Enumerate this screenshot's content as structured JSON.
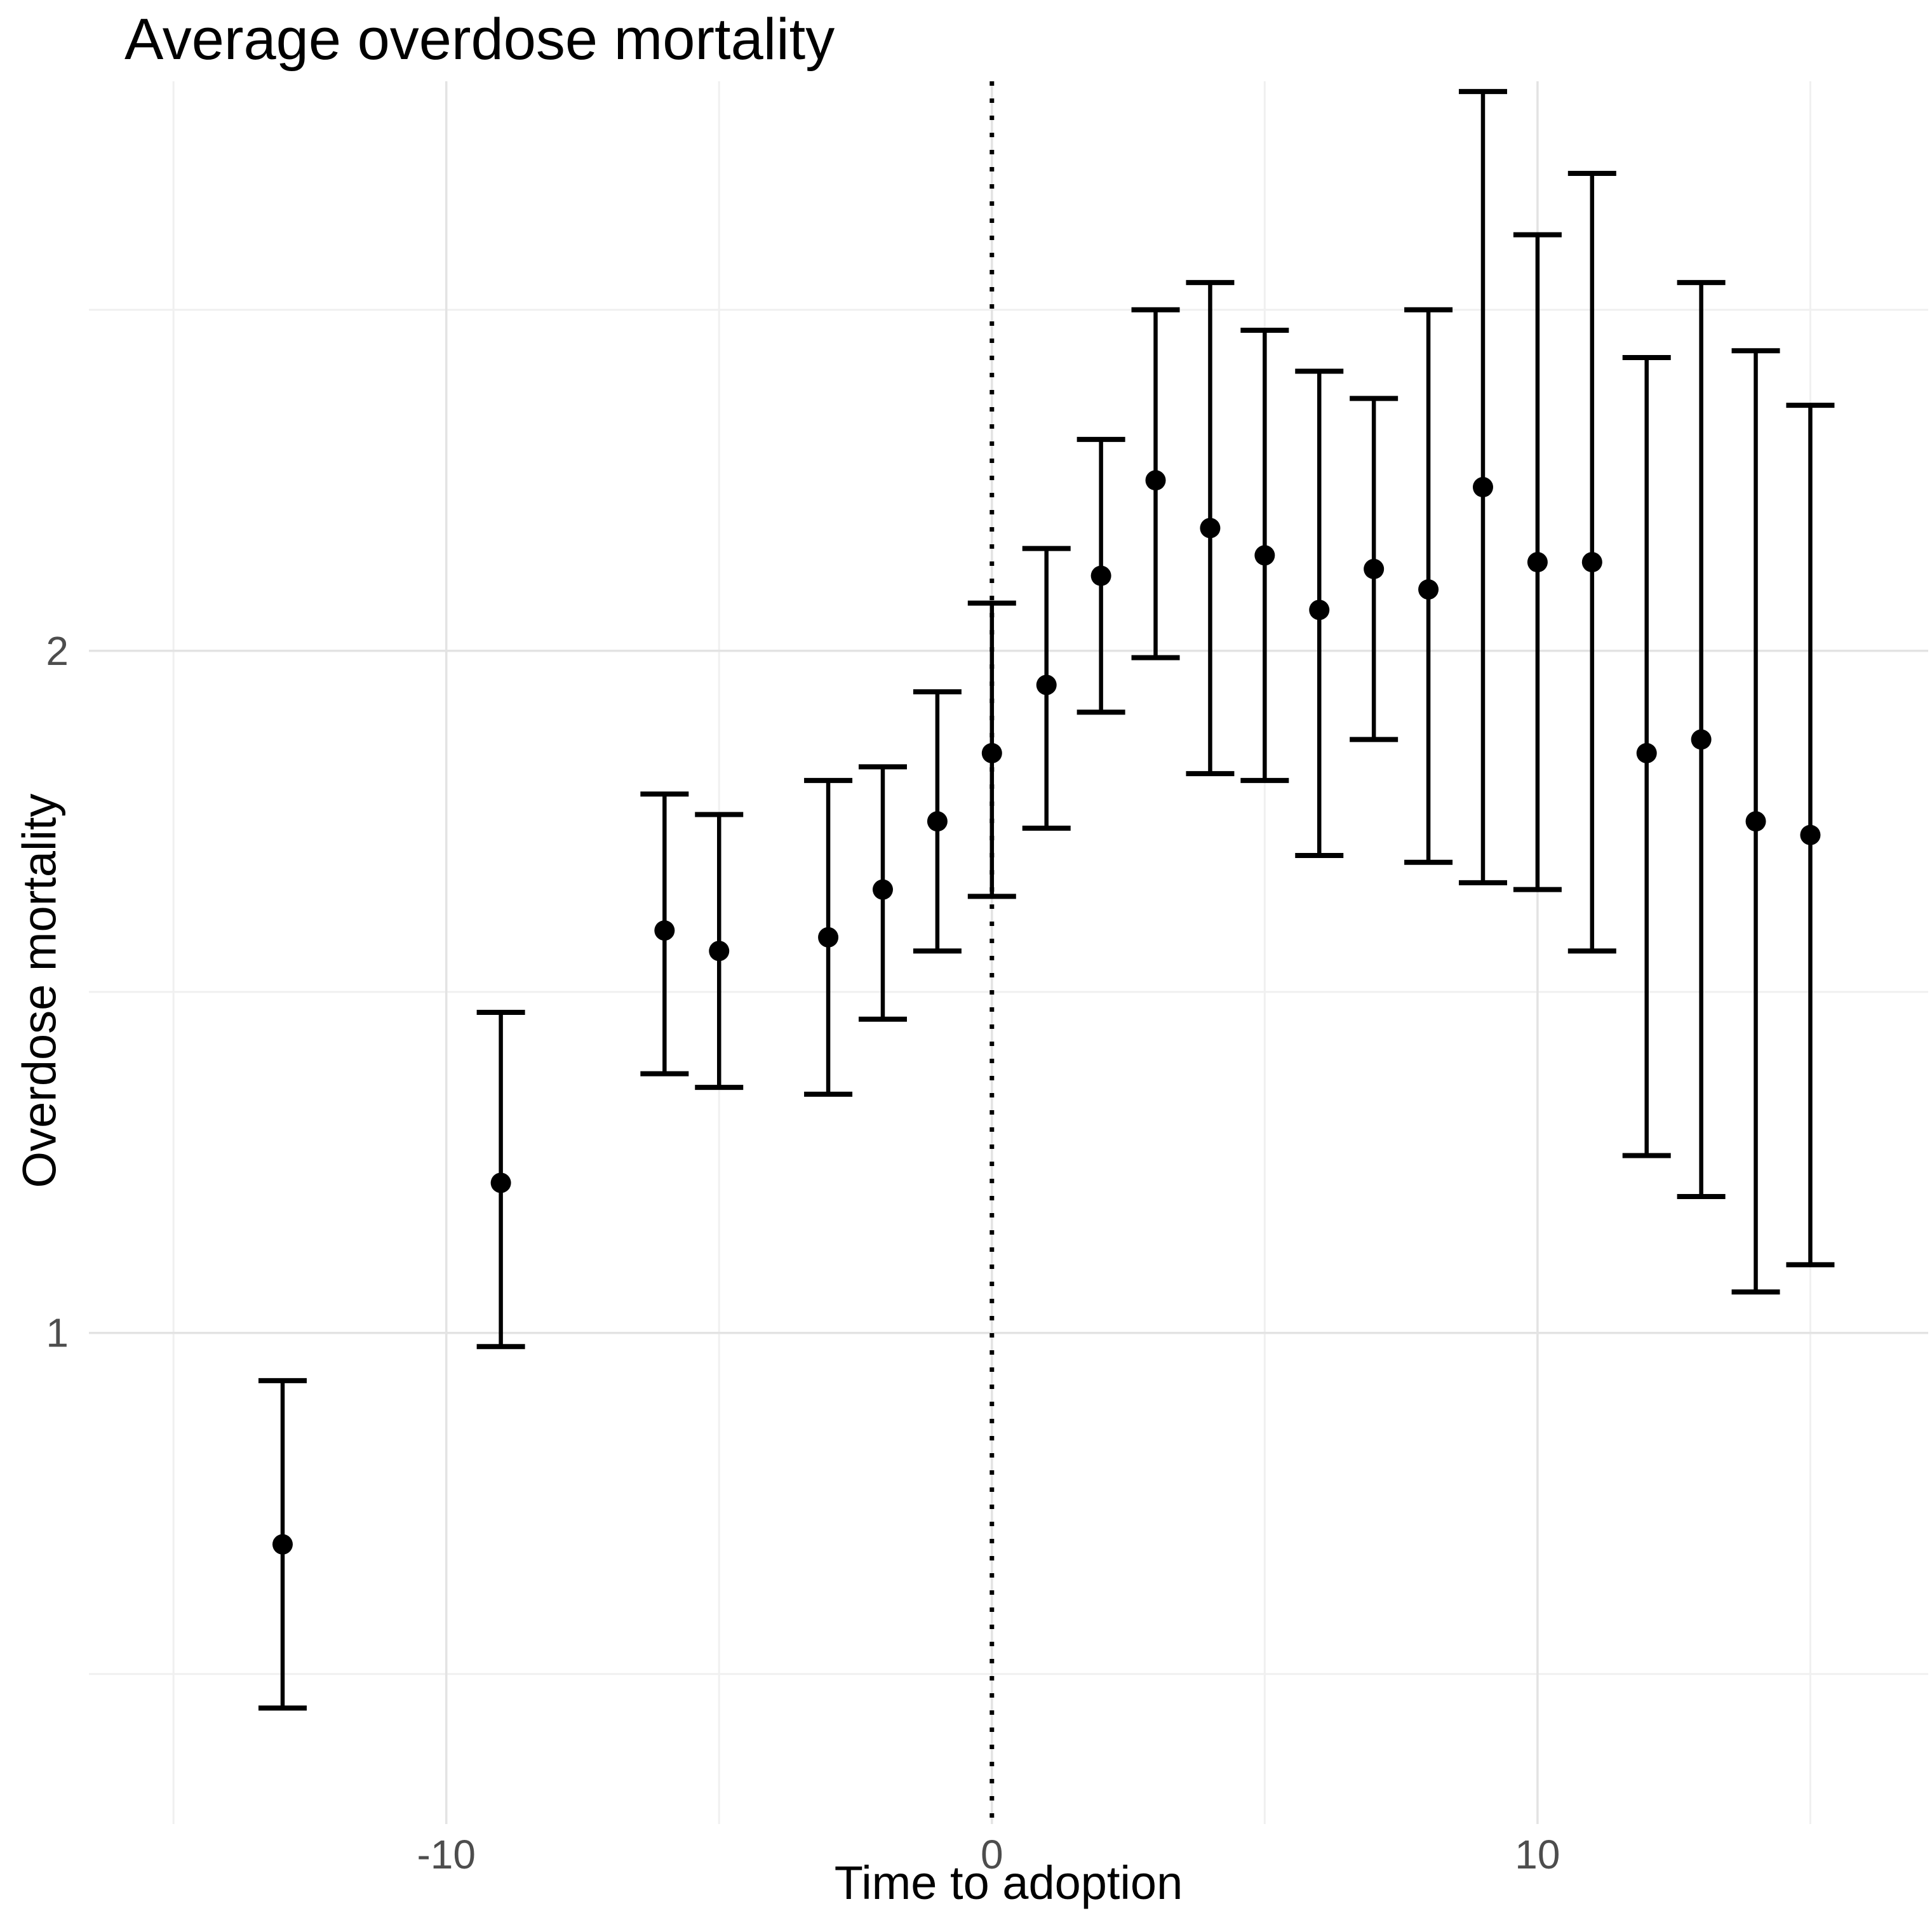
{
  "title": "Average overdose mortality",
  "colors": {
    "background": "#ffffff",
    "point_and_bar": "#000000",
    "gridline_major": "#e3e3e3",
    "gridline_minor": "#f0f0f0",
    "axis_tick_label": "#4d4d4d",
    "axis_title": "#000000",
    "reference_line": "#000000"
  },
  "chart_data": {
    "type": "scatter",
    "subtype": "pointrange-errorbar",
    "title": "Average overdose mortality",
    "xlabel": "Time to adoption",
    "ylabel": "Overdose mortality",
    "xlim": [
      -16.55,
      17.16
    ],
    "ylim": [
      0.28,
      2.835
    ],
    "grid": true,
    "legend_position": "none",
    "reference_line_x": 0,
    "x_major_ticks": [
      {
        "value": -10,
        "label": "-10"
      },
      {
        "value": 0,
        "label": "0"
      },
      {
        "value": 10,
        "label": "10"
      }
    ],
    "x_minor_gridlines": [
      -15,
      -5,
      5,
      15
    ],
    "y_major_ticks": [
      {
        "value": 1,
        "label": "1"
      },
      {
        "value": 2,
        "label": "2"
      }
    ],
    "y_minor_gridlines": [
      0.5,
      1.5,
      2.5
    ],
    "points": [
      {
        "t": -13,
        "estimate": 0.69,
        "ci_low": 0.45,
        "ci_high": 0.93
      },
      {
        "t": -9,
        "estimate": 1.22,
        "ci_low": 0.98,
        "ci_high": 1.47
      },
      {
        "t": -6,
        "estimate": 1.59,
        "ci_low": 1.38,
        "ci_high": 1.79
      },
      {
        "t": -5,
        "estimate": 1.56,
        "ci_low": 1.36,
        "ci_high": 1.76
      },
      {
        "t": -3,
        "estimate": 1.58,
        "ci_low": 1.35,
        "ci_high": 1.81
      },
      {
        "t": -2,
        "estimate": 1.65,
        "ci_low": 1.46,
        "ci_high": 1.83
      },
      {
        "t": -1,
        "estimate": 1.75,
        "ci_low": 1.56,
        "ci_high": 1.94
      },
      {
        "t": 0,
        "estimate": 1.85,
        "ci_low": 1.64,
        "ci_high": 2.07
      },
      {
        "t": 1,
        "estimate": 1.95,
        "ci_low": 1.74,
        "ci_high": 2.15
      },
      {
        "t": 2,
        "estimate": 2.11,
        "ci_low": 1.91,
        "ci_high": 2.31
      },
      {
        "t": 3,
        "estimate": 2.25,
        "ci_low": 1.99,
        "ci_high": 2.5
      },
      {
        "t": 4,
        "estimate": 2.18,
        "ci_low": 1.82,
        "ci_high": 2.54
      },
      {
        "t": 5,
        "estimate": 2.14,
        "ci_low": 1.81,
        "ci_high": 2.47
      },
      {
        "t": 6,
        "estimate": 2.06,
        "ci_low": 1.7,
        "ci_high": 2.41
      },
      {
        "t": 7,
        "estimate": 2.12,
        "ci_low": 1.87,
        "ci_high": 2.37
      },
      {
        "t": 8,
        "estimate": 2.09,
        "ci_low": 1.69,
        "ci_high": 2.5
      },
      {
        "t": 9,
        "estimate": 2.24,
        "ci_low": 1.66,
        "ci_high": 2.82
      },
      {
        "t": 10,
        "estimate": 2.13,
        "ci_low": 1.65,
        "ci_high": 2.61
      },
      {
        "t": 11,
        "estimate": 2.13,
        "ci_low": 1.56,
        "ci_high": 2.7
      },
      {
        "t": 12,
        "estimate": 1.85,
        "ci_low": 1.26,
        "ci_high": 2.43
      },
      {
        "t": 13,
        "estimate": 1.87,
        "ci_low": 1.2,
        "ci_high": 2.54
      },
      {
        "t": 14,
        "estimate": 1.75,
        "ci_low": 1.06,
        "ci_high": 2.44
      },
      {
        "t": 15,
        "estimate": 1.73,
        "ci_low": 1.1,
        "ci_high": 2.36
      }
    ]
  }
}
